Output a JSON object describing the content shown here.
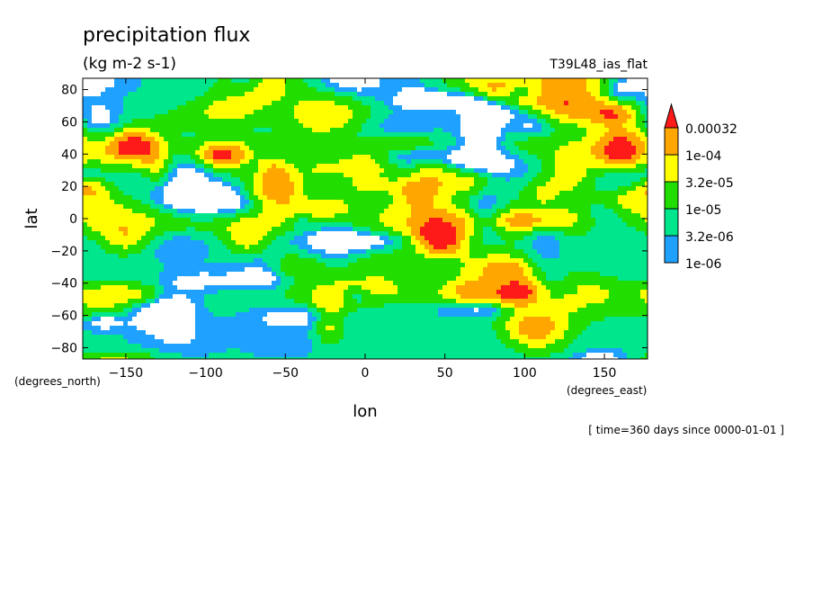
{
  "chart_data": {
    "type": "heatmap",
    "title": "precipitation flux",
    "subtitle": "(kg m-2 s-1)",
    "run_label": "T39L48_ias_flat",
    "xlabel": "lon",
    "ylabel": "lat",
    "x_units": "(degrees_east)",
    "y_units": "(degrees_north)",
    "time_note": "[ time=360 days since 0000-01-01 ]",
    "xlim": [
      -177,
      177
    ],
    "ylim": [
      -87,
      87
    ],
    "x_ticks": [
      -150,
      -100,
      -50,
      0,
      50,
      100,
      150
    ],
    "y_ticks": [
      -80,
      -60,
      -40,
      -20,
      0,
      20,
      40,
      60,
      80
    ],
    "x_tick_labels": [
      "−150",
      "−100",
      "−50",
      "0",
      "50",
      "100",
      "150"
    ],
    "y_tick_labels": [
      "−80",
      "−60",
      "−40",
      "−20",
      "0",
      "20",
      "40",
      "60",
      "80"
    ],
    "colorbar": {
      "levels": [
        "1e-06",
        "3.2e-06",
        "1e-05",
        "3.2e-05",
        "1e-04",
        "0.00032"
      ],
      "colors": [
        "#ffffff",
        "#1fa2ff",
        "#00e68c",
        "#22dd00",
        "#ffff00",
        "#ffa600",
        "#ff1a1a"
      ]
    },
    "grid": false
  }
}
